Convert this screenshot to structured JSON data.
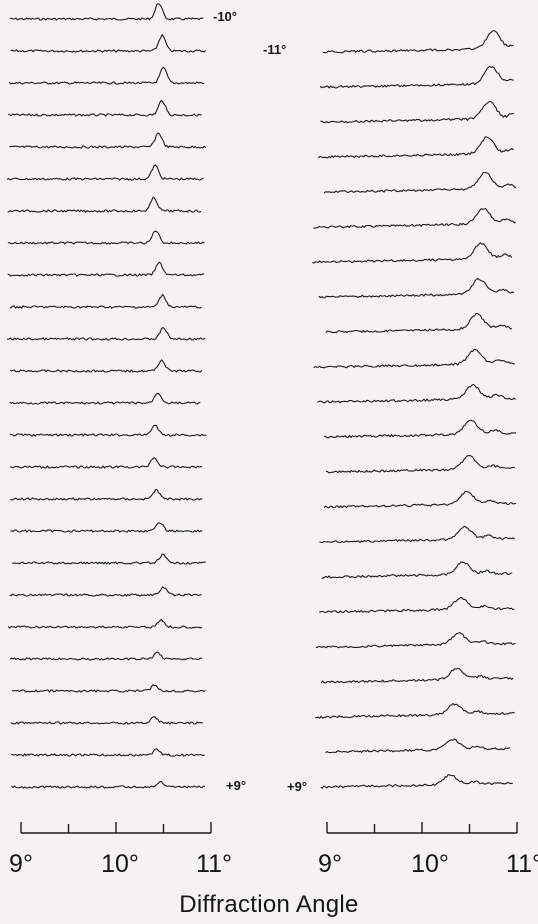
{
  "chart_data": {
    "type": "line",
    "xlabel": "Diffraction Angle",
    "panels": [
      {
        "id": "left",
        "xlim": [
          9,
          11
        ],
        "tick_labels": [
          "9°",
          "10°",
          "11°"
        ],
        "tick_values": [
          9,
          10,
          11
        ],
        "minor_ticks": [
          9.5,
          10.5
        ],
        "trace_count": 25,
        "peak_position_range": [
          10.4,
          10.5
        ],
        "peak_height_range": [
          0.3,
          1.0
        ],
        "annotations": [
          {
            "label": "-10°",
            "trace": 0
          },
          {
            "label": "+9°",
            "trace": 24
          }
        ]
      },
      {
        "id": "right",
        "xlim": [
          9,
          11
        ],
        "tick_labels": [
          "9°",
          "10°",
          "11°"
        ],
        "tick_values": [
          9,
          10,
          11
        ],
        "minor_ticks": [
          9.5,
          10.5
        ],
        "trace_count": 22,
        "peak_position_range": [
          10.3,
          10.75
        ],
        "peak_height_range": [
          0.8,
          1.5
        ],
        "annotations": [
          {
            "label": "-11°",
            "trace": 0
          },
          {
            "label": "+9°",
            "trace": 21
          }
        ]
      }
    ]
  }
}
